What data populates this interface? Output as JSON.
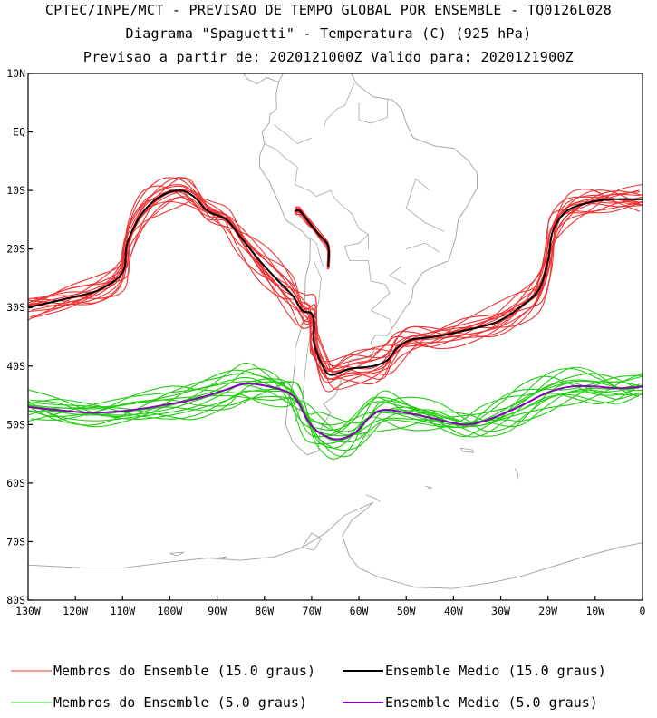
{
  "header": {
    "line1": "CPTEC/INPE/MCT - PREVISAO DE TEMPO GLOBAL POR ENSEMBLE - TQ0126L028",
    "line2": "Diagrama \"Spaguetti\" - Temperatura (C) (925 hPa)",
    "line3": "Previsao a partir de: 2020121000Z  Valido para: 2020121900Z"
  },
  "colors": {
    "members_15": "#ee3333",
    "mean_15": "#000000",
    "members_5": "#22cc11",
    "mean_5": "#8800bb",
    "coast": "#a8a8a8"
  },
  "legend": [
    {
      "label": "Membros do Ensemble (15.0 graus)",
      "color": "#ee3333"
    },
    {
      "label": "Ensemble Medio (15.0 graus)",
      "color": "#000000"
    },
    {
      "label": "Membros do Ensemble (5.0 graus)",
      "color": "#22cc11"
    },
    {
      "label": "Ensemble Medio (5.0 graus)",
      "color": "#8800bb"
    }
  ],
  "chart_data": {
    "type": "line",
    "map": "South America / South Atlantic, cylindrical projection",
    "xlim": [
      -130,
      0
    ],
    "ylim": [
      -80,
      10
    ],
    "x_ticks": [
      {
        "value": -130,
        "label": "130W"
      },
      {
        "value": -120,
        "label": "120W"
      },
      {
        "value": -110,
        "label": "110W"
      },
      {
        "value": -100,
        "label": "100W"
      },
      {
        "value": -90,
        "label": "90W"
      },
      {
        "value": -80,
        "label": "80W"
      },
      {
        "value": -70,
        "label": "70W"
      },
      {
        "value": -60,
        "label": "60W"
      },
      {
        "value": -50,
        "label": "50W"
      },
      {
        "value": -40,
        "label": "40W"
      },
      {
        "value": -30,
        "label": "30W"
      },
      {
        "value": -20,
        "label": "20W"
      },
      {
        "value": -10,
        "label": "10W"
      },
      {
        "value": 0,
        "label": "0"
      }
    ],
    "y_ticks": [
      {
        "value": 10,
        "label": "10N"
      },
      {
        "value": 0,
        "label": "EQ"
      },
      {
        "value": -10,
        "label": "10S"
      },
      {
        "value": -20,
        "label": "20S"
      },
      {
        "value": -30,
        "label": "30S"
      },
      {
        "value": -40,
        "label": "40S"
      },
      {
        "value": -50,
        "label": "50S"
      },
      {
        "value": -60,
        "label": "60S"
      },
      {
        "value": -70,
        "label": "70S"
      },
      {
        "value": -80,
        "label": "80S"
      }
    ],
    "mean_15": {
      "main": [
        [
          -130,
          -30
        ],
        [
          -122,
          -28.5
        ],
        [
          -115,
          -27
        ],
        [
          -110,
          -24
        ],
        [
          -109,
          -19
        ],
        [
          -106,
          -14
        ],
        [
          -102,
          -11
        ],
        [
          -98,
          -10
        ],
        [
          -95,
          -11
        ],
        [
          -92,
          -13.5
        ],
        [
          -88,
          -15
        ],
        [
          -85,
          -18
        ],
        [
          -81,
          -22
        ],
        [
          -77,
          -25.5
        ],
        [
          -74,
          -28
        ],
        [
          -72,
          -30.5
        ],
        [
          -70,
          -31
        ],
        [
          -69.5,
          -33
        ],
        [
          -69.5,
          -36
        ],
        [
          -68,
          -39.5
        ],
        [
          -66,
          -41.5
        ],
        [
          -62,
          -40.5
        ],
        [
          -57,
          -40
        ],
        [
          -54,
          -39
        ],
        [
          -52,
          -37
        ],
        [
          -49,
          -35.5
        ],
        [
          -44,
          -35
        ],
        [
          -38,
          -34
        ],
        [
          -31,
          -32.5
        ],
        [
          -26,
          -30
        ],
        [
          -22,
          -27
        ],
        [
          -20,
          -22
        ],
        [
          -19,
          -17
        ],
        [
          -16,
          -13.5
        ],
        [
          -11,
          -12
        ],
        [
          -6,
          -11.5
        ],
        [
          0,
          -11.5
        ]
      ],
      "andes": [
        [
          -73.5,
          -13.5
        ],
        [
          -72.5,
          -13.5
        ],
        [
          -70.5,
          -15.5
        ],
        [
          -68.5,
          -17.5
        ],
        [
          -66.5,
          -19.5
        ],
        [
          -66.5,
          -23
        ]
      ]
    },
    "mean_5": [
      [
        -130,
        -47
      ],
      [
        -124,
        -47.5
      ],
      [
        -116,
        -48
      ],
      [
        -108,
        -47.5
      ],
      [
        -100,
        -46.5
      ],
      [
        -94,
        -45.5
      ],
      [
        -88,
        -44
      ],
      [
        -84,
        -43
      ],
      [
        -79,
        -43.5
      ],
      [
        -75,
        -44.5
      ],
      [
        -73,
        -46
      ],
      [
        -71,
        -49
      ],
      [
        -69,
        -51
      ],
      [
        -65,
        -52.5
      ],
      [
        -61,
        -51.5
      ],
      [
        -58,
        -49
      ],
      [
        -55,
        -47.5
      ],
      [
        -50,
        -48
      ],
      [
        -44,
        -49
      ],
      [
        -38,
        -50
      ],
      [
        -34,
        -49.5
      ],
      [
        -29,
        -48
      ],
      [
        -25,
        -46.5
      ],
      [
        -20,
        -44.5
      ],
      [
        -15,
        -43.5
      ],
      [
        -10,
        -43.5
      ],
      [
        -5,
        -43.8
      ],
      [
        0,
        -43.5
      ]
    ],
    "members_15_count": 15,
    "members_5_count": 15
  }
}
